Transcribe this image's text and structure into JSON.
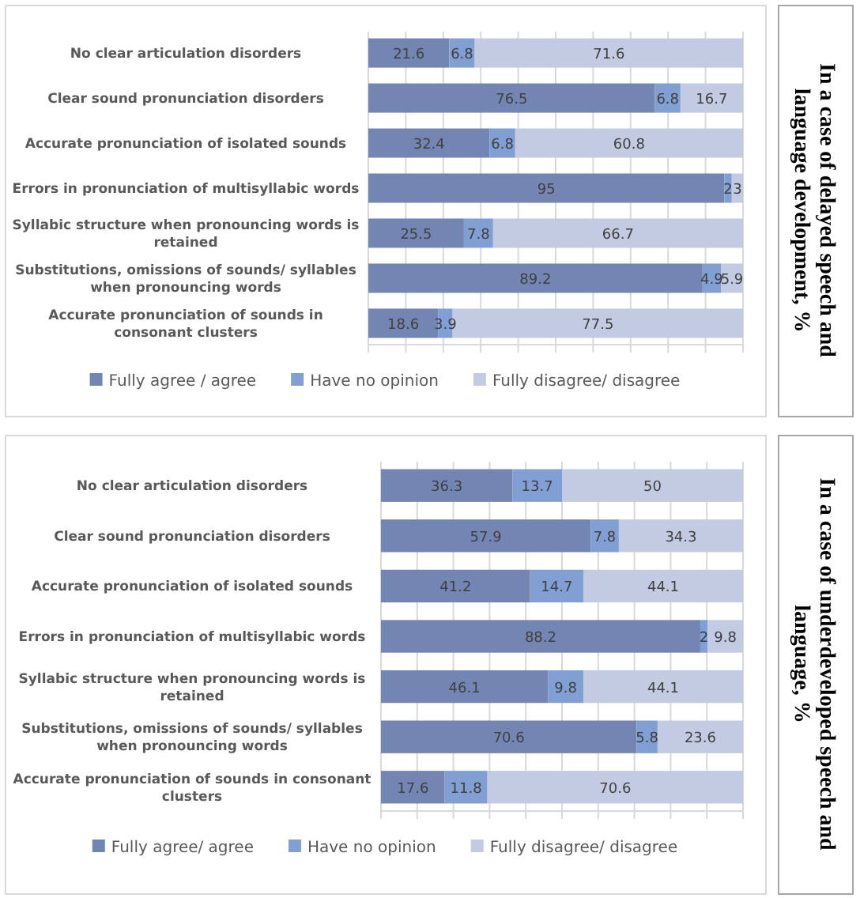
{
  "chart_data": [
    {
      "type": "bar",
      "orientation": "horizontal",
      "stacked": true,
      "y2label": "In a case of delayed speech and language development, %",
      "categories": [
        "No clear articulation disorders",
        "Clear sound pronunciation disorders",
        "Accurate pronunciation of isolated sounds",
        "Errors in pronunciation of multisyllabic words",
        "Syllabic structure when pronouncing words is retained",
        "Substitutions, omissions of sounds/ syllables when pronouncing words",
        "Accurate pronunciation of sounds in consonant clusters"
      ],
      "series": [
        {
          "name": "Fully agree / agree",
          "color": "#7385b2",
          "values": [
            21.6,
            76.5,
            32.4,
            95,
            25.5,
            89.2,
            18.6
          ]
        },
        {
          "name": "Have no opinion",
          "color": "#819fd3",
          "values": [
            6.8,
            6.8,
            6.8,
            2,
            7.8,
            4.9,
            3.9
          ]
        },
        {
          "name": "Fully disagree/ disagree",
          "color": "#c3cbe3",
          "values": [
            71.6,
            16.7,
            60.8,
            3,
            66.7,
            5.9,
            77.5
          ]
        }
      ],
      "xlim": [
        0,
        100
      ],
      "xticks": [
        {
          "value": 0,
          "label": null
        },
        {
          "value": 10,
          "label": null
        },
        {
          "value": 20,
          "label": null
        },
        {
          "value": 30,
          "label": null
        },
        {
          "value": 40,
          "label": null
        },
        {
          "value": 50,
          "label": null
        },
        {
          "value": 60,
          "label": null
        },
        {
          "value": 70,
          "label": null
        },
        {
          "value": 80,
          "label": null
        },
        {
          "value": 90,
          "label": null
        },
        {
          "value": 100,
          "label": null
        }
      ],
      "tick_labels": "y",
      "grid": "x",
      "legend": "bottom",
      "data_labels": true
    },
    {
      "type": "bar",
      "orientation": "horizontal",
      "stacked": true,
      "y2label": "In a case of underdeveloped speech and language, %",
      "categories": [
        "No clear articulation disorders",
        "Clear sound pronunciation disorders",
        "Accurate pronunciation of isolated sounds",
        "Errors in pronunciation of multisyllabic words",
        "Syllabic structure when pronouncing words is retained",
        "Substitutions, omissions of sounds/ syllables when pronouncing words",
        "Accurate pronunciation of sounds in consonant clusters"
      ],
      "series": [
        {
          "name": "Fully agree/ agree",
          "color": "#7385b2",
          "values": [
            36.3,
            57.9,
            41.2,
            88.2,
            46.1,
            70.6,
            17.6
          ]
        },
        {
          "name": "Have no opinion",
          "color": "#819fd3",
          "values": [
            13.7,
            7.8,
            14.7,
            2,
            9.8,
            5.8,
            11.8
          ]
        },
        {
          "name": "Fully disagree/ disagree",
          "color": "#c3cbe3",
          "values": [
            50,
            34.3,
            44.1,
            9.8,
            44.1,
            23.6,
            70.6
          ]
        }
      ],
      "xlim": [
        0,
        100
      ],
      "xticks": [
        {
          "value": 0,
          "label": null
        },
        {
          "value": 10,
          "label": null
        },
        {
          "value": 20,
          "label": null
        },
        {
          "value": 30,
          "label": null
        },
        {
          "value": 40,
          "label": null
        },
        {
          "value": 50,
          "label": null
        },
        {
          "value": 60,
          "label": null
        },
        {
          "value": 70,
          "label": null
        },
        {
          "value": 80,
          "label": null
        },
        {
          "value": 90,
          "label": null
        },
        {
          "value": 100,
          "label": null
        }
      ],
      "tick_labels": "y",
      "grid": "x",
      "legend": "bottom",
      "data_labels": true
    }
  ]
}
